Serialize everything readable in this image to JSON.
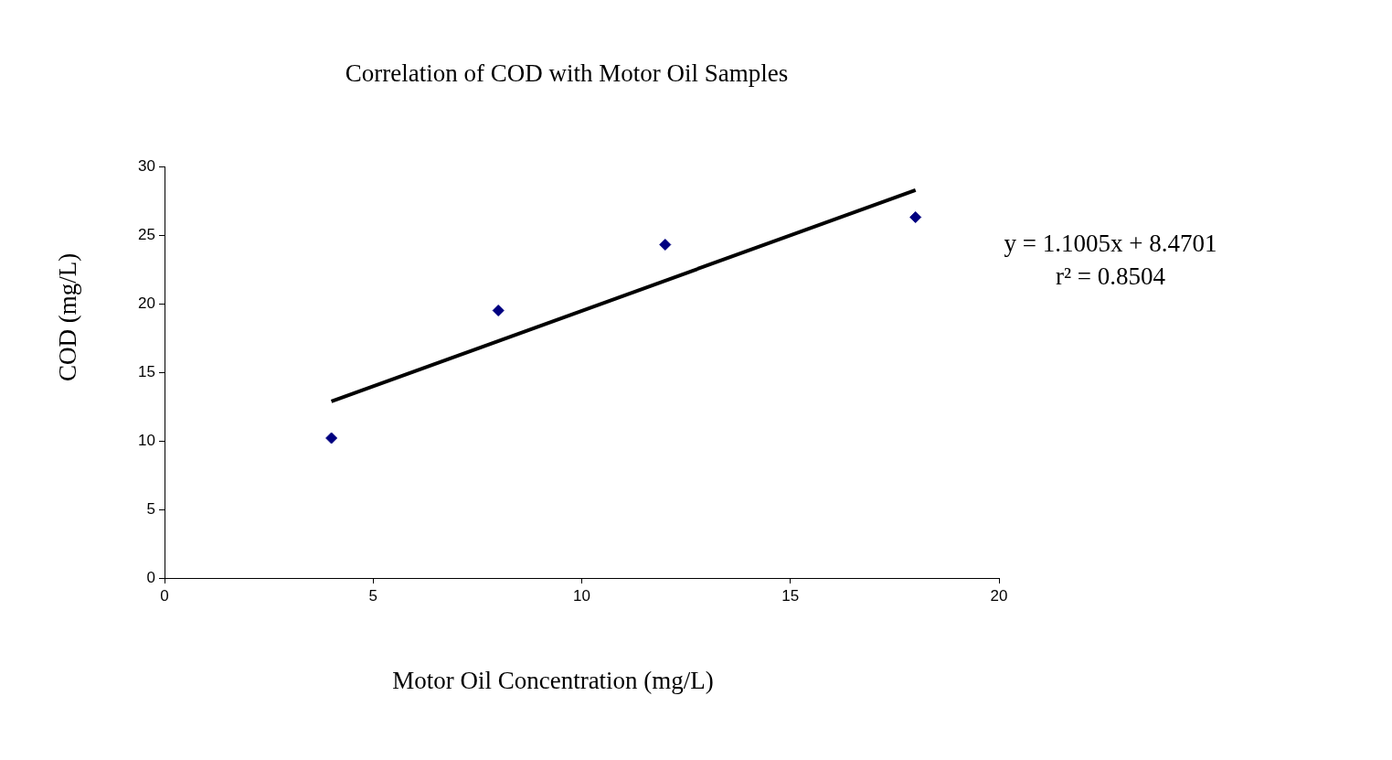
{
  "chart_data": {
    "type": "scatter",
    "title": "Correlation of COD with Motor Oil Samples",
    "xlabel": "Motor Oil Concentration (mg/L)",
    "ylabel": "COD (mg/L)",
    "annotations": [
      "y = 1.1005x + 8.4701",
      "r² = 0.8504"
    ],
    "x": [
      4,
      8,
      12,
      18
    ],
    "series": [
      {
        "type": "scatter",
        "color": "#000080",
        "marker": "diamond",
        "values": [
          10.2,
          19.5,
          24.3,
          26.3
        ]
      },
      {
        "type": "line",
        "color": "#000000",
        "marker": "none",
        "x": [
          4,
          18
        ],
        "values": [
          12.87,
          28.28
        ]
      }
    ],
    "xlim": [
      0,
      20
    ],
    "xticks": [
      0,
      5,
      10,
      15,
      20
    ],
    "ylim": [
      0,
      30
    ],
    "yticks": [
      0,
      5,
      10,
      15,
      20,
      25,
      30
    ],
    "grid": false,
    "legend": false
  }
}
